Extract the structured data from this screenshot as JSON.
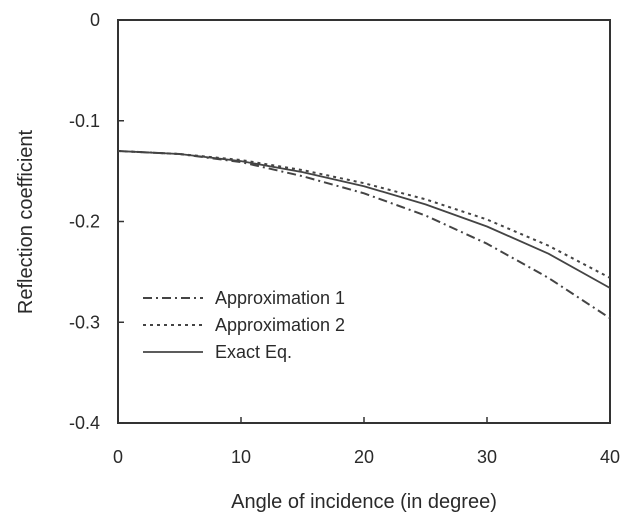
{
  "chart_data": {
    "type": "line",
    "xlabel": "Angle of incidence (in degree)",
    "ylabel": "Reflection coefficient",
    "xlim": [
      0,
      40
    ],
    "ylim": [
      -0.4,
      0
    ],
    "xticks": [
      0,
      10,
      20,
      30,
      40
    ],
    "xtick_labels": [
      "0",
      "10",
      "20",
      "30",
      "40"
    ],
    "yticks": [
      0,
      -0.1,
      -0.2,
      -0.3,
      -0.4
    ],
    "ytick_labels": [
      "0",
      "-0.1",
      "-0.2",
      "-0.3",
      "-0.4"
    ],
    "grid": false,
    "legend_position": "lower-left",
    "x": [
      0,
      5,
      10,
      15,
      20,
      25,
      30,
      35,
      40
    ],
    "series": [
      {
        "name": "Approximation 1",
        "style": "dash-dot",
        "color": "#444444",
        "values": [
          -0.13,
          -0.133,
          -0.141,
          -0.155,
          -0.172,
          -0.194,
          -0.222,
          -0.256,
          -0.296
        ]
      },
      {
        "name": "Approximation 2",
        "style": "dotted",
        "color": "#444444",
        "values": [
          -0.13,
          -0.133,
          -0.139,
          -0.149,
          -0.162,
          -0.178,
          -0.198,
          -0.224,
          -0.256
        ]
      },
      {
        "name": "Exact Eq.",
        "style": "solid",
        "color": "#444444",
        "values": [
          -0.13,
          -0.133,
          -0.14,
          -0.151,
          -0.165,
          -0.183,
          -0.205,
          -0.232,
          -0.266
        ]
      }
    ]
  }
}
